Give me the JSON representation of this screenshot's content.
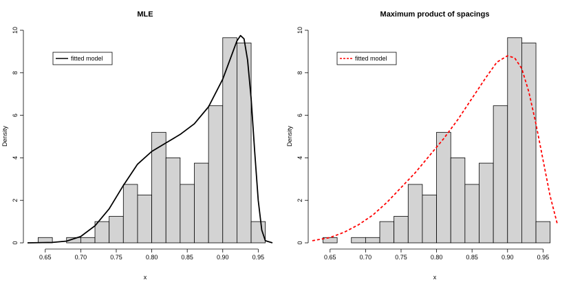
{
  "chart_data": [
    {
      "type": "histogram",
      "title": "MLE",
      "xlabel": "x",
      "ylabel": "Density",
      "xlim": [
        0.625,
        0.97
      ],
      "ylim": [
        0,
        10
      ],
      "xticks": [
        "0.65",
        "0.70",
        "0.75",
        "0.80",
        "0.85",
        "0.90",
        "0.95"
      ],
      "yticks": [
        "0",
        "2",
        "4",
        "6",
        "8",
        "10"
      ],
      "bin_width": 0.02,
      "bins": [
        {
          "x0": 0.64,
          "density": 0.25
        },
        {
          "x0": 0.66,
          "density": 0
        },
        {
          "x0": 0.68,
          "density": 0.25
        },
        {
          "x0": 0.7,
          "density": 0.25
        },
        {
          "x0": 0.72,
          "density": 1.0
        },
        {
          "x0": 0.74,
          "density": 1.25
        },
        {
          "x0": 0.76,
          "density": 2.75
        },
        {
          "x0": 0.78,
          "density": 2.25
        },
        {
          "x0": 0.8,
          "density": 5.2
        },
        {
          "x0": 0.82,
          "density": 4.0
        },
        {
          "x0": 0.84,
          "density": 2.75
        },
        {
          "x0": 0.86,
          "density": 3.75
        },
        {
          "x0": 0.88,
          "density": 6.45
        },
        {
          "x0": 0.9,
          "density": 9.65
        },
        {
          "x0": 0.92,
          "density": 9.4
        },
        {
          "x0": 0.94,
          "density": 1.0
        }
      ],
      "bar_color": "#d3d3d3",
      "curve": {
        "name": "fitted model",
        "color": "#000000",
        "dash": "solid",
        "points": [
          [
            0.625,
            0.0
          ],
          [
            0.66,
            0.02
          ],
          [
            0.68,
            0.08
          ],
          [
            0.7,
            0.3
          ],
          [
            0.72,
            0.8
          ],
          [
            0.74,
            1.6
          ],
          [
            0.76,
            2.7
          ],
          [
            0.78,
            3.7
          ],
          [
            0.8,
            4.3
          ],
          [
            0.82,
            4.7
          ],
          [
            0.84,
            5.1
          ],
          [
            0.86,
            5.6
          ],
          [
            0.88,
            6.4
          ],
          [
            0.9,
            7.7
          ],
          [
            0.91,
            8.6
          ],
          [
            0.92,
            9.5
          ],
          [
            0.925,
            9.75
          ],
          [
            0.93,
            9.6
          ],
          [
            0.935,
            8.6
          ],
          [
            0.94,
            6.8
          ],
          [
            0.945,
            4.3
          ],
          [
            0.95,
            2.0
          ],
          [
            0.955,
            0.6
          ],
          [
            0.96,
            0.1
          ],
          [
            0.97,
            0.0
          ]
        ]
      },
      "legend": {
        "position": "top-left",
        "label": "fitted model"
      }
    },
    {
      "type": "histogram",
      "title": "Maximum product of spacings",
      "xlabel": "x",
      "ylabel": "Density",
      "xlim": [
        0.625,
        0.97
      ],
      "ylim": [
        0,
        10
      ],
      "xticks": [
        "0.65",
        "0.70",
        "0.75",
        "0.80",
        "0.85",
        "0.90",
        "0.95"
      ],
      "yticks": [
        "0",
        "2",
        "4",
        "6",
        "8",
        "10"
      ],
      "bin_width": 0.02,
      "bins": [
        {
          "x0": 0.64,
          "density": 0.25
        },
        {
          "x0": 0.66,
          "density": 0
        },
        {
          "x0": 0.68,
          "density": 0.25
        },
        {
          "x0": 0.7,
          "density": 0.25
        },
        {
          "x0": 0.72,
          "density": 1.0
        },
        {
          "x0": 0.74,
          "density": 1.25
        },
        {
          "x0": 0.76,
          "density": 2.75
        },
        {
          "x0": 0.78,
          "density": 2.25
        },
        {
          "x0": 0.8,
          "density": 5.2
        },
        {
          "x0": 0.82,
          "density": 4.0
        },
        {
          "x0": 0.84,
          "density": 2.75
        },
        {
          "x0": 0.86,
          "density": 3.75
        },
        {
          "x0": 0.88,
          "density": 6.45
        },
        {
          "x0": 0.9,
          "density": 9.65
        },
        {
          "x0": 0.92,
          "density": 9.4
        },
        {
          "x0": 0.94,
          "density": 1.0
        }
      ],
      "bar_color": "#d3d3d3",
      "curve": {
        "name": "fitted model",
        "color": "#ff0000",
        "dash": "dashed",
        "points": [
          [
            0.625,
            0.1
          ],
          [
            0.65,
            0.25
          ],
          [
            0.67,
            0.5
          ],
          [
            0.69,
            0.85
          ],
          [
            0.71,
            1.3
          ],
          [
            0.73,
            1.9
          ],
          [
            0.75,
            2.6
          ],
          [
            0.77,
            3.3
          ],
          [
            0.79,
            4.1
          ],
          [
            0.81,
            4.9
          ],
          [
            0.83,
            5.8
          ],
          [
            0.85,
            6.8
          ],
          [
            0.87,
            7.8
          ],
          [
            0.885,
            8.5
          ],
          [
            0.9,
            8.8
          ],
          [
            0.91,
            8.7
          ],
          [
            0.92,
            8.2
          ],
          [
            0.93,
            7.1
          ],
          [
            0.94,
            5.6
          ],
          [
            0.95,
            3.9
          ],
          [
            0.96,
            2.2
          ],
          [
            0.97,
            0.9
          ]
        ]
      },
      "legend": {
        "position": "top-left",
        "label": "fitted model"
      }
    }
  ]
}
